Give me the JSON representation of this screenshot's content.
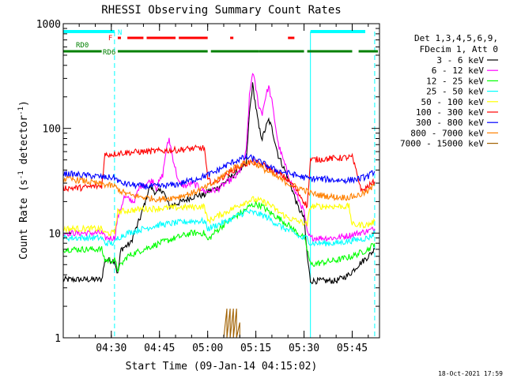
{
  "chart_data": {
    "type": "line",
    "title": "RHESSI Observing Summary Count Rates",
    "xlabel": "Start Time (09-Jan-14 04:15:02)",
    "ylabel": "Count Rate (s⁻¹ detector⁻¹)",
    "ylabel_parts": {
      "main": "Count Rate (s",
      "exp1": "-1",
      "mid": " detector",
      "exp2": "-1",
      "end": ")"
    },
    "yscale": "log",
    "xlim": [
      "04:15:02",
      "05:53:30"
    ],
    "ylim": [
      1,
      1000
    ],
    "x_ticks": [
      "04:30",
      "04:45",
      "05:00",
      "05:15",
      "05:30",
      "05:45"
    ],
    "y_ticks": [
      {
        "value": 1,
        "label": "1"
      },
      {
        "value": 10,
        "label": "10"
      },
      {
        "value": 100,
        "label": "100"
      },
      {
        "value": 1000,
        "label": "1000"
      }
    ],
    "legend_position": "right",
    "legend_header": [
      "Det 1,3,4,5,6,9,",
      "FDecim 1, Att 0"
    ],
    "timestamp": "18-Oct-2021 17:59",
    "flags": {
      "N_label": "N",
      "F_label": "F",
      "RD0_label": "RD0",
      "RD6_label": "RD6"
    },
    "series": [
      {
        "name": "3 - 6 keV",
        "color": "#000000",
        "points": [
          [
            "04:15",
            3.6
          ],
          [
            "04:27",
            3.6
          ],
          [
            "04:28",
            5.5
          ],
          [
            "04:31",
            5.5
          ],
          [
            "04:32",
            4
          ],
          [
            "04:33",
            7
          ],
          [
            "04:36",
            8
          ],
          [
            "04:39",
            14
          ],
          [
            "04:42",
            28
          ],
          [
            "04:44",
            24
          ],
          [
            "04:46",
            26
          ],
          [
            "04:48",
            18
          ],
          [
            "04:52",
            20
          ],
          [
            "04:55",
            22
          ],
          [
            "04:57",
            23
          ],
          [
            "04:59",
            23
          ],
          [
            "05:00",
            25
          ],
          [
            "05:03",
            27
          ],
          [
            "05:05",
            30
          ],
          [
            "05:07",
            34
          ],
          [
            "05:09",
            38
          ],
          [
            "05:11",
            42
          ],
          [
            "05:12",
            45
          ],
          [
            "05:13",
            140
          ],
          [
            "05:14",
            260
          ],
          [
            "05:15",
            160
          ],
          [
            "05:16",
            100
          ],
          [
            "05:17",
            80
          ],
          [
            "05:18",
            100
          ],
          [
            "05:19",
            120
          ],
          [
            "05:20",
            100
          ],
          [
            "05:22",
            55
          ],
          [
            "05:24",
            40
          ],
          [
            "05:26",
            28
          ],
          [
            "05:28",
            18
          ],
          [
            "05:30",
            14
          ],
          [
            "05:31",
            6
          ],
          [
            "05:32",
            3.5
          ],
          [
            "05:40",
            3.5
          ],
          [
            "05:44",
            4
          ],
          [
            "05:47",
            5
          ],
          [
            "05:50",
            6
          ],
          [
            "05:52",
            7
          ]
        ]
      },
      {
        "name": "6 - 12 keV",
        "color": "#ff00ff",
        "points": [
          [
            "04:15",
            10
          ],
          [
            "04:27",
            10
          ],
          [
            "04:28",
            9
          ],
          [
            "04:31",
            9
          ],
          [
            "04:32",
            14
          ],
          [
            "04:34",
            22
          ],
          [
            "04:37",
            20
          ],
          [
            "04:39",
            28
          ],
          [
            "04:41",
            30
          ],
          [
            "04:43",
            32
          ],
          [
            "04:44",
            27
          ],
          [
            "04:46",
            36
          ],
          [
            "04:47",
            60
          ],
          [
            "04:48",
            80
          ],
          [
            "04:49",
            55
          ],
          [
            "04:51",
            30
          ],
          [
            "04:53",
            28
          ],
          [
            "04:55",
            30
          ],
          [
            "04:57",
            28
          ],
          [
            "04:59",
            25
          ],
          [
            "05:00",
            25
          ],
          [
            "05:03",
            26
          ],
          [
            "05:05",
            29
          ],
          [
            "05:07",
            32
          ],
          [
            "05:09",
            35
          ],
          [
            "05:11",
            45
          ],
          [
            "05:12",
            60
          ],
          [
            "05:13",
            200
          ],
          [
            "05:14",
            350
          ],
          [
            "05:15",
            240
          ],
          [
            "05:16",
            160
          ],
          [
            "05:17",
            140
          ],
          [
            "05:18",
            200
          ],
          [
            "05:19",
            250
          ],
          [
            "05:20",
            180
          ],
          [
            "05:22",
            70
          ],
          [
            "05:24",
            45
          ],
          [
            "05:26",
            30
          ],
          [
            "05:28",
            22
          ],
          [
            "05:30",
            16
          ],
          [
            "05:31",
            10
          ],
          [
            "05:32",
            9
          ],
          [
            "05:40",
            9
          ],
          [
            "05:44",
            9.5
          ],
          [
            "05:47",
            10
          ],
          [
            "05:50",
            10.5
          ],
          [
            "05:52",
            11
          ]
        ]
      },
      {
        "name": "12 - 25 keV",
        "color": "#00ff00",
        "points": [
          [
            "04:15",
            7
          ],
          [
            "04:27",
            7
          ],
          [
            "04:28",
            5.5
          ],
          [
            "04:31",
            5.5
          ],
          [
            "04:32",
            4.5
          ],
          [
            "04:35",
            6
          ],
          [
            "04:40",
            7
          ],
          [
            "04:45",
            8
          ],
          [
            "04:50",
            9
          ],
          [
            "04:55",
            10
          ],
          [
            "04:59",
            10
          ],
          [
            "05:00",
            8.5
          ],
          [
            "05:02",
            10
          ],
          [
            "05:05",
            12
          ],
          [
            "05:08",
            14
          ],
          [
            "05:11",
            16
          ],
          [
            "05:13",
            18
          ],
          [
            "05:15",
            19
          ],
          [
            "05:17",
            18
          ],
          [
            "05:19",
            16
          ],
          [
            "05:22",
            14
          ],
          [
            "05:25",
            12
          ],
          [
            "05:28",
            10
          ],
          [
            "05:30",
            9
          ],
          [
            "05:31",
            7
          ],
          [
            "05:32",
            5
          ],
          [
            "05:40",
            5.5
          ],
          [
            "05:45",
            6
          ],
          [
            "05:50",
            7
          ],
          [
            "05:52",
            8
          ]
        ]
      },
      {
        "name": "25 - 50 keV",
        "color": "#00ffff",
        "points": [
          [
            "04:15",
            9
          ],
          [
            "04:27",
            9
          ],
          [
            "04:28",
            8
          ],
          [
            "04:31",
            8
          ],
          [
            "04:32",
            9
          ],
          [
            "04:35",
            10
          ],
          [
            "04:40",
            11
          ],
          [
            "04:45",
            12
          ],
          [
            "04:50",
            12.5
          ],
          [
            "04:55",
            13
          ],
          [
            "04:59",
            13
          ],
          [
            "05:00",
            11
          ],
          [
            "05:03",
            12
          ],
          [
            "05:06",
            13
          ],
          [
            "05:09",
            14.5
          ],
          [
            "05:12",
            16
          ],
          [
            "05:15",
            15.5
          ],
          [
            "05:18",
            14.5
          ],
          [
            "05:21",
            12.5
          ],
          [
            "05:24",
            11
          ],
          [
            "05:27",
            10
          ],
          [
            "05:29",
            9
          ],
          [
            "05:31",
            9
          ],
          [
            "05:32",
            8
          ],
          [
            "05:40",
            8
          ],
          [
            "05:45",
            8.5
          ],
          [
            "05:50",
            9
          ],
          [
            "05:52",
            10
          ]
        ]
      },
      {
        "name": "50 - 100 keV",
        "color": "#ffff00",
        "points": [
          [
            "04:15",
            11
          ],
          [
            "04:27",
            11
          ],
          [
            "04:28",
            10
          ],
          [
            "04:31",
            10
          ],
          [
            "04:32",
            16
          ],
          [
            "04:40",
            17
          ],
          [
            "04:50",
            17.5
          ],
          [
            "04:59",
            18
          ],
          [
            "05:00",
            13
          ],
          [
            "05:03",
            14.5
          ],
          [
            "05:06",
            16
          ],
          [
            "05:09",
            18
          ],
          [
            "05:12",
            20
          ],
          [
            "05:14",
            21
          ],
          [
            "05:16",
            20.5
          ],
          [
            "05:19",
            19
          ],
          [
            "05:22",
            16
          ],
          [
            "05:25",
            14
          ],
          [
            "05:28",
            13
          ],
          [
            "05:30",
            12.5
          ],
          [
            "05:31",
            12
          ],
          [
            "05:32",
            18
          ],
          [
            "05:42",
            18
          ],
          [
            "05:44",
            18
          ],
          [
            "05:45",
            12
          ],
          [
            "05:50",
            12
          ],
          [
            "05:52",
            13
          ]
        ]
      },
      {
        "name": "100 - 300 keV",
        "color": "#ff0000",
        "points": [
          [
            "04:15",
            27
          ],
          [
            "04:20",
            27
          ],
          [
            "04:25",
            28
          ],
          [
            "04:27",
            28
          ],
          [
            "04:28",
            56
          ],
          [
            "04:31",
            57
          ],
          [
            "04:32",
            58
          ],
          [
            "04:40",
            60
          ],
          [
            "04:50",
            62
          ],
          [
            "04:55",
            64
          ],
          [
            "04:59",
            65
          ],
          [
            "05:00",
            32
          ],
          [
            "05:02",
            30
          ],
          [
            "05:05",
            35
          ],
          [
            "05:08",
            40
          ],
          [
            "05:11",
            45
          ],
          [
            "05:14",
            48
          ],
          [
            "05:17",
            45
          ],
          [
            "05:20",
            40
          ],
          [
            "05:23",
            36
          ],
          [
            "05:26",
            30
          ],
          [
            "05:28",
            25
          ],
          [
            "05:30",
            20
          ],
          [
            "05:31",
            18
          ],
          [
            "05:32",
            50
          ],
          [
            "05:40",
            52
          ],
          [
            "05:45",
            53
          ],
          [
            "05:48",
            25
          ],
          [
            "05:50",
            28
          ],
          [
            "05:52",
            31
          ]
        ]
      },
      {
        "name": "300 - 800 keV",
        "color": "#0000ff",
        "points": [
          [
            "04:15",
            37
          ],
          [
            "04:20",
            36
          ],
          [
            "04:25",
            35
          ],
          [
            "04:28",
            34
          ],
          [
            "04:31",
            34
          ],
          [
            "04:33",
            30
          ],
          [
            "04:36",
            29
          ],
          [
            "04:40",
            28
          ],
          [
            "04:45",
            28
          ],
          [
            "04:50",
            29
          ],
          [
            "04:55",
            32
          ],
          [
            "04:59",
            35
          ],
          [
            "05:02",
            38
          ],
          [
            "05:05",
            43
          ],
          [
            "05:08",
            48
          ],
          [
            "05:11",
            52
          ],
          [
            "05:13",
            53
          ],
          [
            "05:15",
            50
          ],
          [
            "05:18",
            45
          ],
          [
            "05:21",
            40
          ],
          [
            "05:24",
            38
          ],
          [
            "05:27",
            36
          ],
          [
            "05:30",
            34
          ],
          [
            "05:32",
            33
          ],
          [
            "05:35",
            33
          ],
          [
            "05:40",
            32
          ],
          [
            "05:44",
            32
          ],
          [
            "05:47",
            33
          ],
          [
            "05:50",
            35
          ],
          [
            "05:52",
            39
          ]
        ]
      },
      {
        "name": "800 - 7000 keV",
        "color": "#ff8000",
        "points": [
          [
            "04:15",
            33
          ],
          [
            "04:20",
            32
          ],
          [
            "04:25",
            30
          ],
          [
            "04:28",
            29
          ],
          [
            "04:31",
            28
          ],
          [
            "04:33",
            25
          ],
          [
            "04:36",
            23
          ],
          [
            "04:40",
            22
          ],
          [
            "04:45",
            21
          ],
          [
            "04:50",
            22
          ],
          [
            "04:55",
            24
          ],
          [
            "04:59",
            27
          ],
          [
            "05:02",
            30
          ],
          [
            "05:05",
            36
          ],
          [
            "05:08",
            42
          ],
          [
            "05:11",
            46
          ],
          [
            "05:13",
            48
          ],
          [
            "05:15",
            46
          ],
          [
            "05:18",
            40
          ],
          [
            "05:21",
            35
          ],
          [
            "05:24",
            31
          ],
          [
            "05:27",
            28
          ],
          [
            "05:30",
            26
          ],
          [
            "05:32",
            24
          ],
          [
            "05:35",
            23
          ],
          [
            "05:40",
            22
          ],
          [
            "05:44",
            22
          ],
          [
            "05:47",
            23
          ],
          [
            "05:50",
            25
          ],
          [
            "05:52",
            29
          ]
        ]
      },
      {
        "name": "7000 - 15000 keV",
        "color": "#a06000",
        "points": [
          [
            "05:05",
            1
          ],
          [
            "05:06",
            1.9
          ],
          [
            "05:06",
            1
          ],
          [
            "05:07",
            1.9
          ],
          [
            "05:07",
            1
          ],
          [
            "05:08",
            1.9
          ],
          [
            "05:08",
            1
          ],
          [
            "05:09",
            1.9
          ],
          [
            "05:09",
            1
          ],
          [
            "05:10",
            1.4
          ],
          [
            "05:10",
            1
          ]
        ]
      }
    ]
  }
}
